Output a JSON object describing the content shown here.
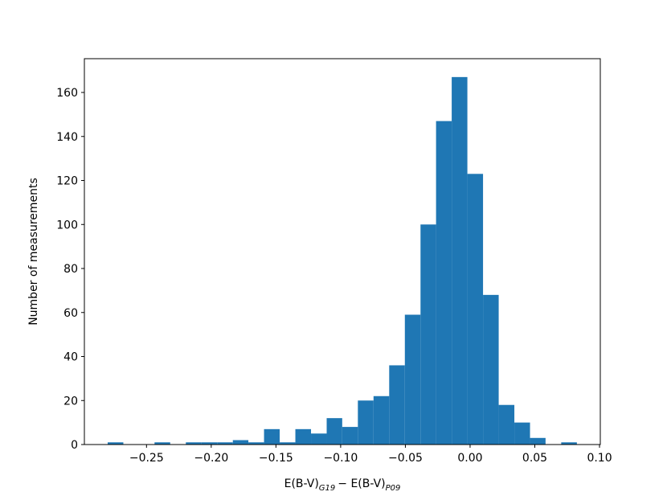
{
  "chart_data": {
    "type": "histogram",
    "xlabel": [
      "E(B-V)",
      "G19",
      "− E(B-V)",
      "P09"
    ],
    "ylabel": "Number of measurements",
    "color": "#1f77b4",
    "bins": [
      -0.28,
      -0.2679,
      -0.2558,
      -0.2438,
      -0.2317,
      -0.2196,
      -0.2075,
      -0.1954,
      -0.1833,
      -0.1713,
      -0.1592,
      -0.1471,
      -0.135,
      -0.1229,
      -0.1108,
      -0.0988,
      -0.0867,
      -0.0746,
      -0.0625,
      -0.0504,
      -0.0383,
      -0.0263,
      -0.0142,
      -0.0021,
      0.01,
      0.0221,
      0.0342,
      0.0463,
      0.0583,
      0.0704,
      0.0825
    ],
    "values": [
      1,
      0,
      0,
      1,
      0,
      1,
      1,
      1,
      2,
      1,
      7,
      1,
      7,
      5,
      12,
      8,
      20,
      22,
      36,
      59,
      100,
      147,
      167,
      123,
      68,
      18,
      10,
      3,
      0,
      1
    ],
    "xlim": [
      -0.298,
      0.1006
    ],
    "ylim": [
      0,
      175.35
    ],
    "xticks": [
      {
        "value": -0.25,
        "label": "−0.25"
      },
      {
        "value": -0.2,
        "label": "−0.20"
      },
      {
        "value": -0.15,
        "label": "−0.15"
      },
      {
        "value": -0.1,
        "label": "−0.10"
      },
      {
        "value": -0.05,
        "label": "−0.05"
      },
      {
        "value": 0,
        "label": "0.00"
      },
      {
        "value": 0.05,
        "label": "0.05"
      },
      {
        "value": 0.1,
        "label": "0.10"
      }
    ],
    "yticks": [
      0,
      20,
      40,
      60,
      80,
      100,
      120,
      140,
      160
    ]
  }
}
